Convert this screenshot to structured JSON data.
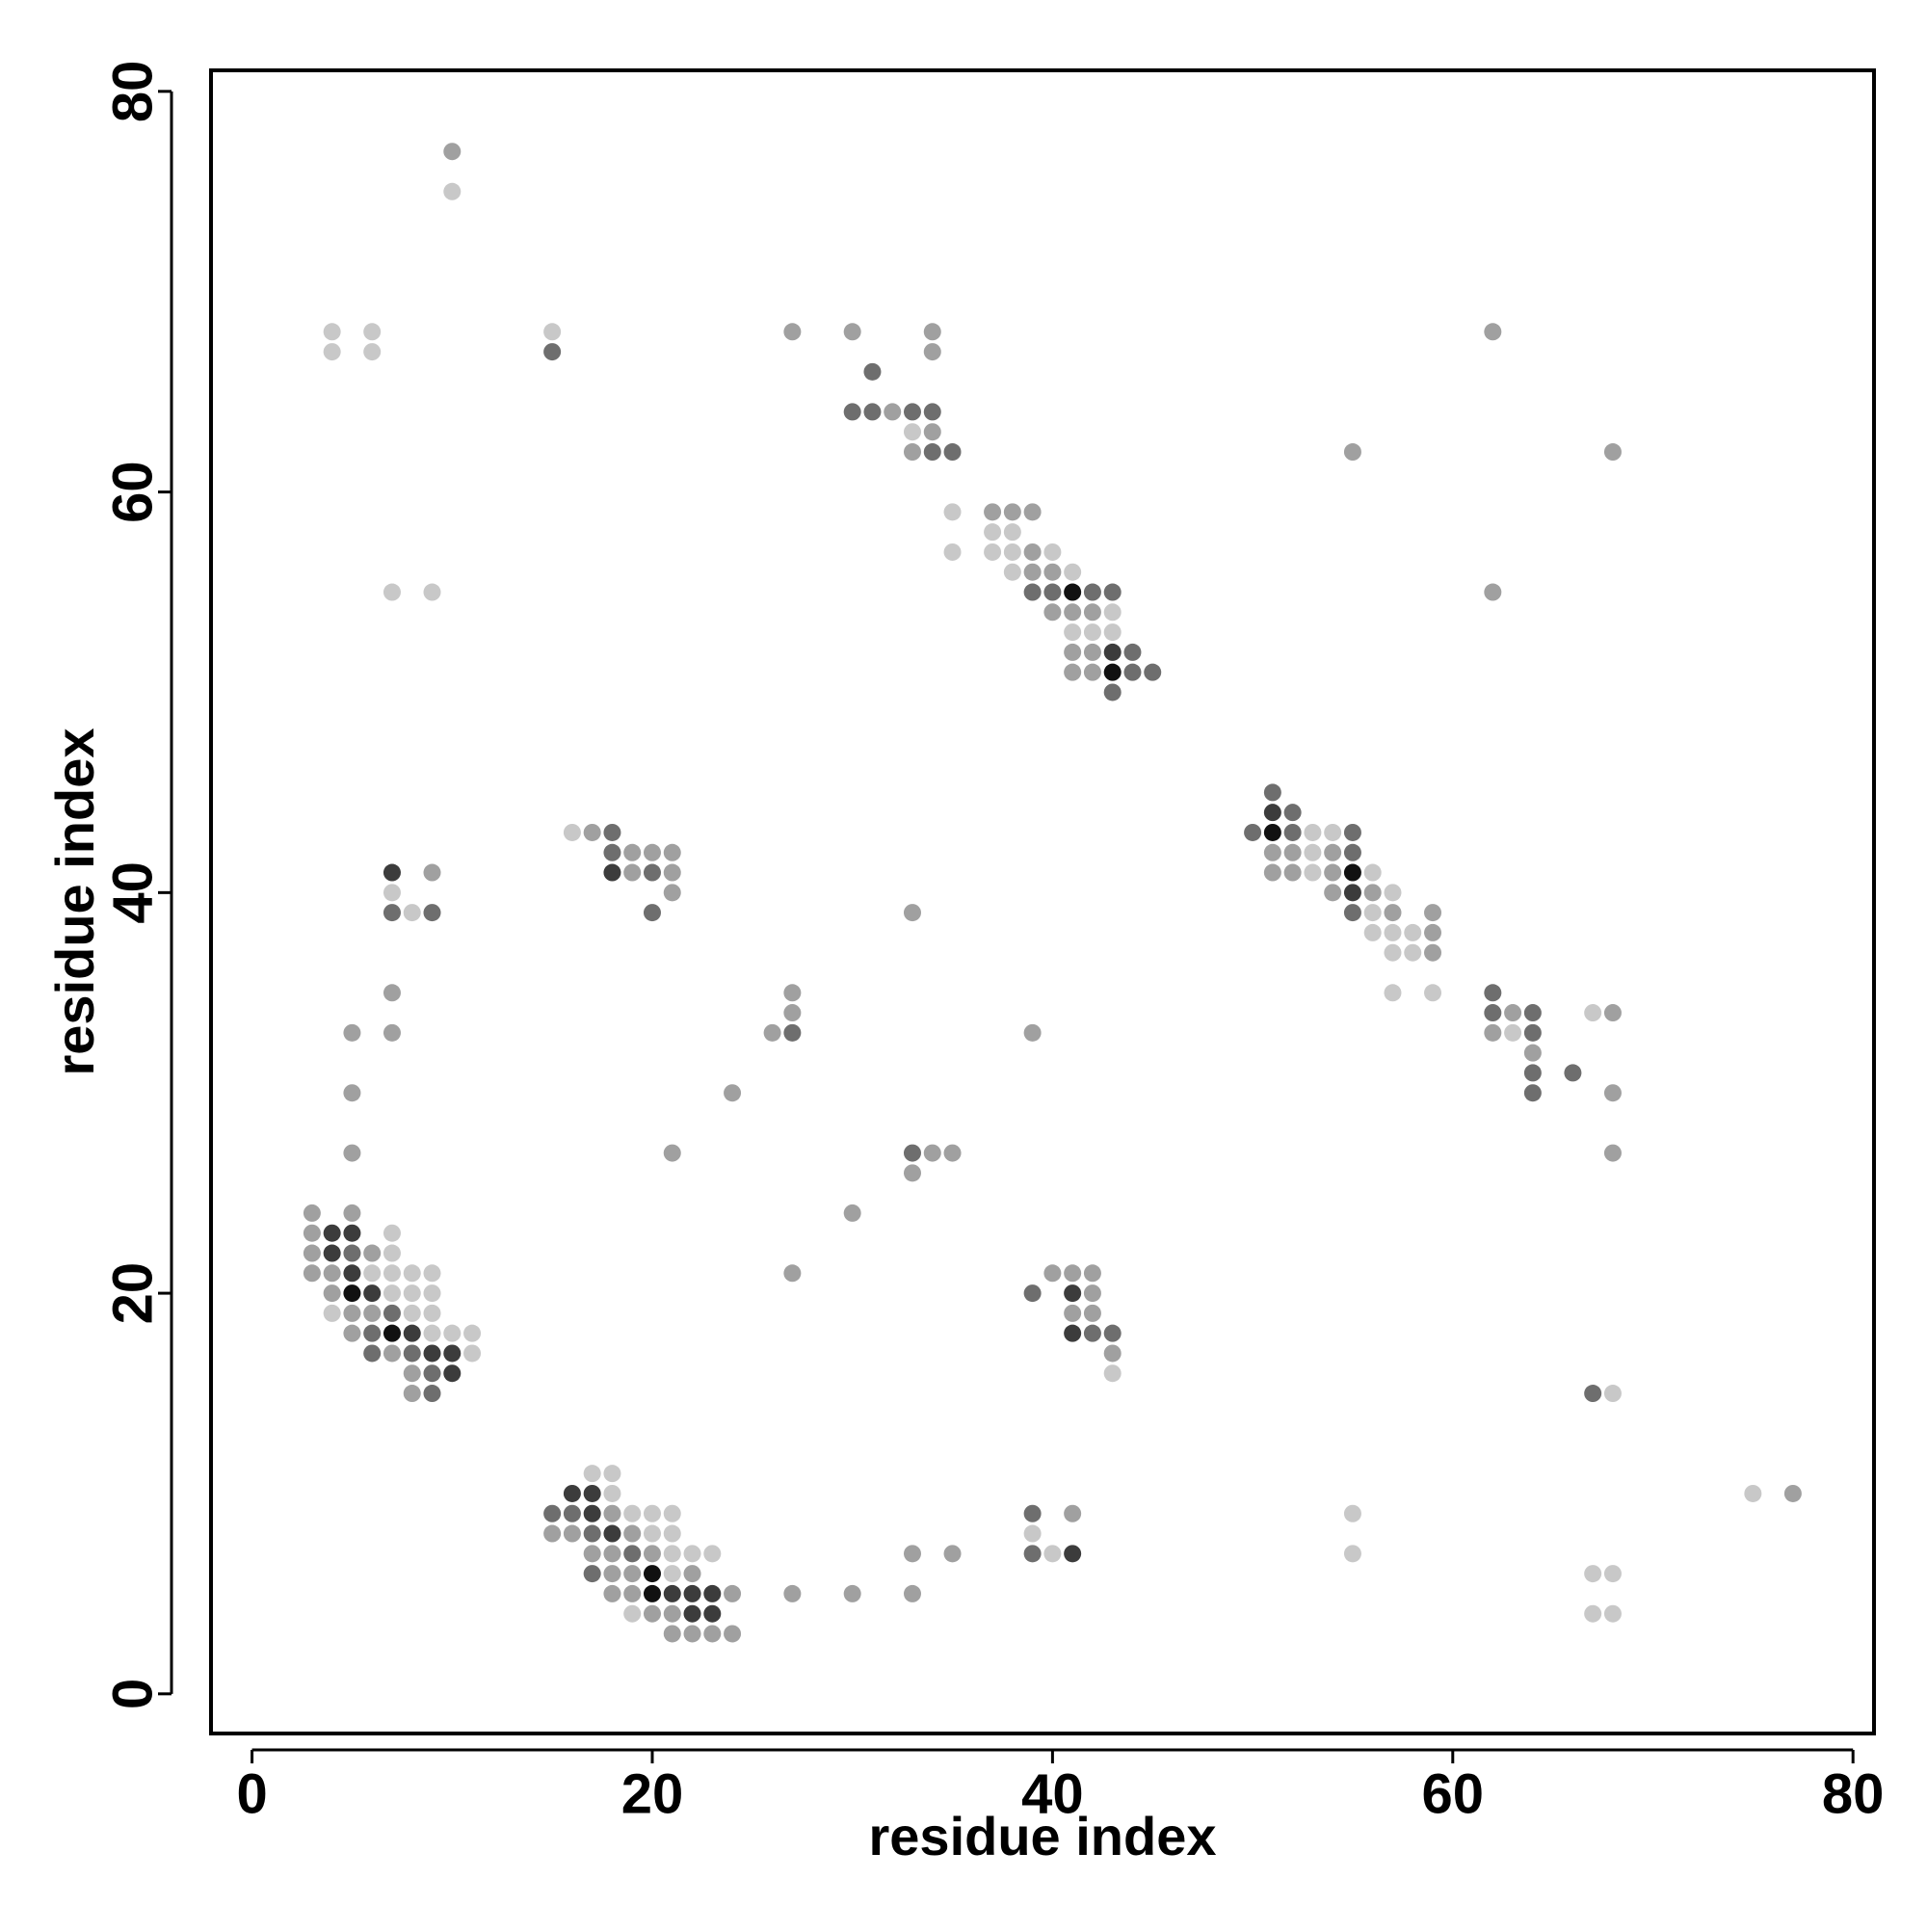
{
  "chart_data": {
    "type": "scatter",
    "xlabel": "residue index",
    "ylabel": "residue index",
    "xlim": [
      -2.05,
      81.05
    ],
    "ylim": [
      -1.98,
      81.05
    ],
    "xticks": [
      0,
      20,
      40,
      60,
      80
    ],
    "yticks": [
      0,
      20,
      40,
      60,
      80
    ],
    "grid": false,
    "series": [
      {
        "color": "#c8c8c8",
        "x": [
          10,
          4,
          6,
          15,
          4,
          6,
          33,
          35,
          37,
          38,
          35,
          37,
          38,
          40,
          38,
          41,
          7,
          9,
          43,
          41,
          42,
          43,
          16,
          53,
          54,
          53,
          53,
          56,
          7,
          57,
          8,
          56,
          56,
          57,
          58,
          57,
          58,
          57,
          59,
          67,
          63,
          7,
          7,
          6,
          7,
          8,
          9,
          7,
          8,
          9,
          4,
          8,
          9,
          9,
          10,
          11,
          11,
          43,
          68,
          17,
          18,
          18,
          75,
          19,
          20,
          21,
          55,
          20,
          21,
          39,
          21,
          22,
          23,
          40,
          55,
          21,
          67,
          68,
          19,
          67,
          68
        ],
        "y": [
          75,
          68,
          68,
          68,
          67,
          67,
          63,
          59,
          58,
          58,
          57,
          57,
          57,
          57,
          56,
          56,
          55,
          55,
          54,
          53,
          53,
          53,
          43,
          43,
          43,
          42,
          41,
          41,
          40,
          40,
          39,
          39,
          38,
          38,
          38,
          37,
          37,
          35,
          35,
          34,
          33,
          23,
          22,
          21,
          21,
          21,
          21,
          20,
          20,
          20,
          19,
          19,
          19,
          18,
          18,
          18,
          17,
          16,
          15,
          11,
          11,
          10,
          10,
          9,
          9,
          9,
          9,
          8,
          8,
          8,
          7,
          7,
          7,
          7,
          7,
          6,
          6,
          6,
          4,
          4,
          4
        ]
      },
      {
        "color": "#a0a0a0",
        "x": [
          10,
          27,
          30,
          34,
          62,
          34,
          32,
          34,
          33,
          55,
          68,
          37,
          38,
          39,
          39,
          39,
          40,
          62,
          40,
          41,
          42,
          41,
          42,
          41,
          42,
          17,
          19,
          20,
          21,
          51,
          52,
          54,
          9,
          19,
          21,
          51,
          52,
          54,
          21,
          54,
          56,
          33,
          57,
          59,
          59,
          59,
          7,
          27,
          27,
          63,
          68,
          5,
          7,
          26,
          39,
          62,
          64,
          5,
          24,
          68,
          5,
          21,
          34,
          35,
          68,
          33,
          3,
          5,
          30,
          3,
          3,
          6,
          3,
          4,
          27,
          40,
          41,
          42,
          4,
          42,
          5,
          6,
          41,
          42,
          5,
          7,
          43,
          8,
          8,
          77,
          18,
          41,
          15,
          16,
          19,
          17,
          18,
          20,
          33,
          35,
          18,
          19,
          22,
          18,
          19,
          24,
          27,
          30,
          33,
          20,
          21,
          21,
          22,
          23,
          24
        ],
        "y": [
          77,
          68,
          68,
          68,
          68,
          67,
          64,
          63,
          62,
          62,
          62,
          59,
          59,
          59,
          57,
          56,
          56,
          55,
          54,
          54,
          54,
          52,
          52,
          51,
          51,
          43,
          42,
          42,
          42,
          42,
          42,
          42,
          41,
          41,
          41,
          41,
          41,
          41,
          40,
          40,
          40,
          39,
          39,
          39,
          38,
          37,
          35,
          35,
          34,
          34,
          34,
          33,
          33,
          33,
          33,
          33,
          32,
          30,
          30,
          30,
          27,
          27,
          27,
          27,
          27,
          26,
          24,
          24,
          24,
          23,
          22,
          22,
          21,
          21,
          21,
          21,
          21,
          21,
          20,
          20,
          19,
          19,
          19,
          19,
          18,
          17,
          17,
          16,
          15,
          10,
          9,
          9,
          8,
          8,
          8,
          7,
          7,
          7,
          7,
          7,
          6,
          6,
          6,
          5,
          5,
          5,
          5,
          5,
          5,
          4,
          4,
          3,
          3,
          3,
          3
        ]
      },
      {
        "color": "#6e6e6e",
        "x": [
          15,
          31,
          30,
          31,
          33,
          34,
          34,
          35,
          39,
          40,
          42,
          43,
          44,
          44,
          45,
          43,
          51,
          52,
          18,
          50,
          52,
          55,
          18,
          55,
          20,
          7,
          9,
          20,
          55,
          62,
          62,
          64,
          27,
          64,
          64,
          66,
          64,
          33,
          5,
          39,
          7,
          6,
          42,
          43,
          6,
          8,
          9,
          9,
          67,
          15,
          16,
          39,
          17,
          19,
          39,
          17
        ],
        "y": [
          67,
          66,
          64,
          64,
          64,
          64,
          62,
          62,
          55,
          55,
          55,
          55,
          52,
          51,
          51,
          50,
          45,
          44,
          43,
          43,
          43,
          43,
          42,
          42,
          41,
          39,
          39,
          39,
          39,
          35,
          34,
          34,
          33,
          33,
          31,
          31,
          30,
          27,
          22,
          20,
          19,
          18,
          18,
          18,
          17,
          17,
          16,
          15,
          15,
          9,
          9,
          9,
          8,
          7,
          7,
          6
        ]
      },
      {
        "color": "#3c3c3c",
        "x": [
          43,
          51,
          7,
          18,
          55,
          4,
          5,
          4,
          5,
          6,
          41,
          8,
          41,
          9,
          10,
          10,
          16,
          17,
          17,
          18,
          41,
          21,
          22,
          23,
          22,
          23
        ],
        "y": [
          52,
          44,
          41,
          41,
          40,
          23,
          23,
          22,
          21,
          20,
          20,
          18,
          18,
          17,
          17,
          16,
          10,
          10,
          9,
          8,
          7,
          5,
          5,
          5,
          4,
          4
        ]
      },
      {
        "color": "#111111",
        "x": [
          41,
          43,
          51,
          55,
          5,
          7,
          20,
          20
        ],
        "y": [
          55,
          51,
          43,
          41,
          20,
          18,
          6,
          5
        ]
      }
    ]
  }
}
